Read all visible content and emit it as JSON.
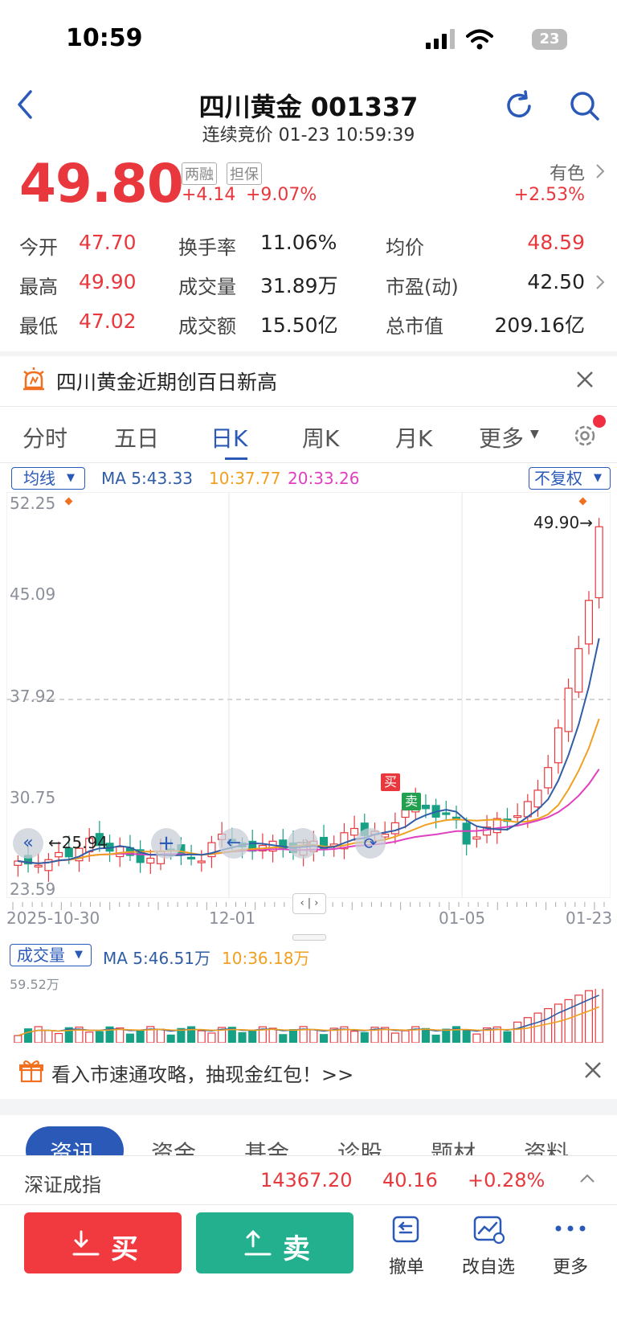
{
  "status_bar": {
    "time": "10:59",
    "battery": "23"
  },
  "header": {
    "title": "四川黄金 001337",
    "subtitle": "连续竞价 01-23 10:59:39"
  },
  "quote": {
    "price": "49.80",
    "tags": [
      "两融",
      "担保"
    ],
    "change": "+4.14",
    "change_pct": "+9.07%",
    "sector_name": "有色",
    "sector_change": "+2.53%"
  },
  "stats": [
    [
      {
        "label": "今开",
        "value": "47.70",
        "color": "red"
      },
      {
        "label": "换手率",
        "value": "11.06%",
        "color": "black"
      },
      {
        "label": "均价",
        "value": "48.59",
        "color": "red"
      }
    ],
    [
      {
        "label": "最高",
        "value": "49.90",
        "color": "red"
      },
      {
        "label": "成交量",
        "value": "31.89万",
        "color": "black"
      },
      {
        "label": "市盈(动)",
        "value": "42.50",
        "color": "black"
      }
    ],
    [
      {
        "label": "最低",
        "value": "47.02",
        "color": "red"
      },
      {
        "label": "成交额",
        "value": "15.50亿",
        "color": "black"
      },
      {
        "label": "总市值",
        "value": "209.16亿",
        "color": "black"
      }
    ]
  ],
  "notice": {
    "text": "四川黄金近期创百日新高"
  },
  "chart_tabs": [
    "分时",
    "五日",
    "日K",
    "周K",
    "月K",
    "更多"
  ],
  "active_tab": "日K",
  "ma_bar": {
    "selector": "均线",
    "ma5": "MA 5:43.33",
    "ma10": "10:37.77",
    "ma20": "20:33.26",
    "adjust": "不复权"
  },
  "chart_labels": {
    "y_ticks": [
      "52.25",
      "45.09",
      "37.92",
      "30.75",
      "23.59"
    ],
    "x_ticks": [
      "2025-10-30",
      "12-01",
      "01-05",
      "01-23"
    ],
    "high_marker": "49.90",
    "low_marker": "25.94",
    "buy_marker": "买",
    "sell_marker": "卖"
  },
  "volume_bar": {
    "selector": "成交量",
    "ma5": "MA 5:46.51万",
    "ma10": "10:36.18万",
    "max_label": "59.52万"
  },
  "banner": {
    "text": "看入市速通攻略，抽现金红包！>>"
  },
  "info_tabs": [
    "资讯",
    "资金",
    "基金",
    "诊股",
    "题材",
    "资料"
  ],
  "index_bar": {
    "name": "深证成指",
    "value": "14367.20",
    "change": "40.16",
    "change_pct": "+0.28%"
  },
  "actions": {
    "buy": "买",
    "sell": "卖",
    "cancel": "撤单",
    "watchlist": "改自选",
    "more": "更多"
  },
  "colors": {
    "up": "#e8383d",
    "down": "#16a085",
    "ma5": "#2f5da6",
    "ma10": "#f0a020",
    "ma20": "#e040c0",
    "accent": "#2a59b8"
  },
  "chart_data": {
    "type": "candlestick",
    "y_range": [
      23.59,
      52.25
    ],
    "x_range": [
      "2025-10-30",
      "01-23"
    ],
    "series": [
      {
        "name": "MA5",
        "value": "43.33"
      },
      {
        "name": "MA10",
        "value": "37.77"
      },
      {
        "name": "MA20",
        "value": "33.26"
      }
    ],
    "volume_max": "59.52万"
  }
}
